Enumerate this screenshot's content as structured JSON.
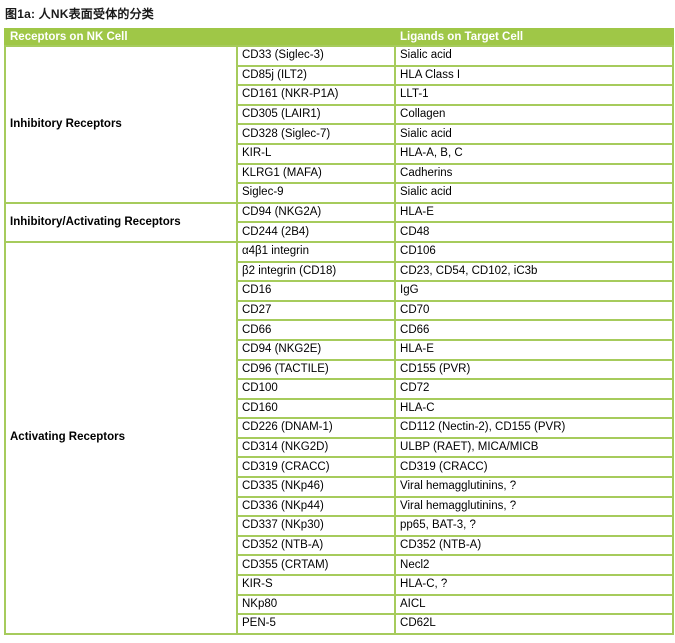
{
  "title": "图1a: 人NK表面受体的分类",
  "colors": {
    "header_green": "#9FC747",
    "grid_green": "#A6CB5C",
    "header_text": "#FFFFFF",
    "body_text": "#000000"
  },
  "table": {
    "header": {
      "receptors": "Receptors on NK Cell",
      "ligands": "Ligands on Target Cell"
    },
    "sections": [
      {
        "label": "Inhibitory Receptors",
        "rows": [
          {
            "receptor": "CD33 (Siglec-3)",
            "ligand": "Sialic acid"
          },
          {
            "receptor": "CD85j (ILT2)",
            "ligand": "HLA Class I"
          },
          {
            "receptor": "CD161 (NKR-P1A)",
            "ligand": "LLT-1"
          },
          {
            "receptor": "CD305 (LAIR1)",
            "ligand": "Collagen"
          },
          {
            "receptor": "CD328 (Siglec-7)",
            "ligand": "Sialic acid"
          },
          {
            "receptor": "KIR-L",
            "ligand": "HLA-A, B, C"
          },
          {
            "receptor": "KLRG1 (MAFA)",
            "ligand": "Cadherins"
          },
          {
            "receptor": "Siglec-9",
            "ligand": "Sialic acid"
          }
        ]
      },
      {
        "label": "Inhibitory/Activating Receptors",
        "rows": [
          {
            "receptor": "CD94 (NKG2A)",
            "ligand": "HLA-E"
          },
          {
            "receptor": "CD244 (2B4)",
            "ligand": "CD48"
          }
        ]
      },
      {
        "label": "Activating Receptors",
        "rows": [
          {
            "receptor": "α4β1 integrin",
            "ligand": "CD106"
          },
          {
            "receptor": "β2 integrin (CD18)",
            "ligand": "CD23, CD54, CD102, iC3b"
          },
          {
            "receptor": "CD16",
            "ligand": "IgG"
          },
          {
            "receptor": "CD27",
            "ligand": "CD70"
          },
          {
            "receptor": "CD66",
            "ligand": "CD66"
          },
          {
            "receptor": "CD94 (NKG2E)",
            "ligand": "HLA-E"
          },
          {
            "receptor": "CD96 (TACTILE)",
            "ligand": "CD155 (PVR)"
          },
          {
            "receptor": "CD100",
            "ligand": "CD72"
          },
          {
            "receptor": "CD160",
            "ligand": "HLA-C"
          },
          {
            "receptor": "CD226 (DNAM-1)",
            "ligand": "CD112 (Nectin-2), CD155 (PVR)"
          },
          {
            "receptor": "CD314 (NKG2D)",
            "ligand": "ULBP (RAET), MICA/MICB"
          },
          {
            "receptor": "CD319 (CRACC)",
            "ligand": "CD319 (CRACC)"
          },
          {
            "receptor": "CD335 (NKp46)",
            "ligand": "Viral hemagglutinins, ?"
          },
          {
            "receptor": "CD336 (NKp44)",
            "ligand": "Viral hemagglutinins, ?"
          },
          {
            "receptor": "CD337 (NKp30)",
            "ligand": "pp65, BAT-3, ?"
          },
          {
            "receptor": "CD352 (NTB-A)",
            "ligand": "CD352 (NTB-A)"
          },
          {
            "receptor": "CD355 (CRTAM)",
            "ligand": "Necl2"
          },
          {
            "receptor": "KIR-S",
            "ligand": "HLA-C, ?"
          },
          {
            "receptor": "NKp80",
            "ligand": "AICL"
          },
          {
            "receptor": "PEN-5",
            "ligand": "CD62L"
          }
        ]
      }
    ]
  }
}
